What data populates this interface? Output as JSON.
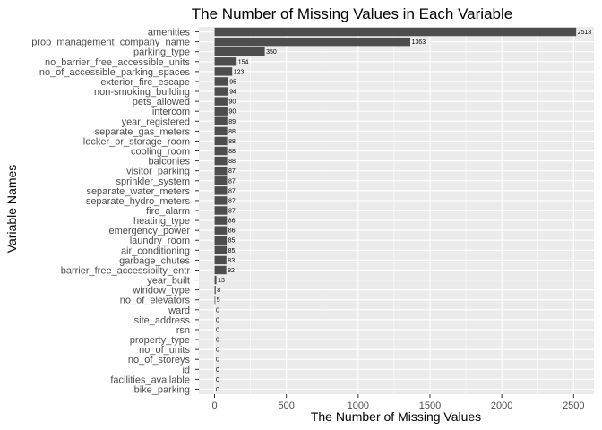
{
  "chart_data": {
    "type": "bar",
    "orientation": "horizontal",
    "title": "The Number of Missing Values in Each Variable",
    "xlabel": "The Number of Missing Values",
    "ylabel": "Variable Names",
    "xlim": [
      0,
      2600
    ],
    "x_ticks": [
      0,
      500,
      1000,
      1500,
      2000,
      2500
    ],
    "grid": true,
    "bar_color": "#4d4d4d",
    "panel_color": "#ebebeb",
    "categories": [
      "amenities",
      "prop_management_company_name",
      "parking_type",
      "no_barrier_free_accessible_units",
      "no_of_accessible_parking_spaces",
      "exterior_fire_escape",
      "non-smoking_building",
      "pets_allowed",
      "intercom",
      "year_registered",
      "separate_gas_meters",
      "locker_or_storage_room",
      "cooling_room",
      "balconies",
      "visitor_parking",
      "sprinkler_system",
      "separate_water_meters",
      "separate_hydro_meters",
      "fire_alarm",
      "heating_type",
      "emergency_power",
      "laundry_room",
      "air_conditioning",
      "garbage_chutes",
      "barrier_free_accessibilty_entr",
      "year_built",
      "window_type",
      "no_of_elevators",
      "ward",
      "site_address",
      "rsn",
      "property_type",
      "no_of_units",
      "no_of_storeys",
      "id",
      "facilities_available",
      "bike_parking"
    ],
    "values": [
      2518,
      1363,
      350,
      154,
      123,
      95,
      94,
      90,
      90,
      89,
      88,
      88,
      88,
      88,
      87,
      87,
      87,
      87,
      87,
      86,
      86,
      85,
      85,
      83,
      82,
      13,
      8,
      5,
      0,
      0,
      0,
      0,
      0,
      0,
      0,
      0,
      0
    ]
  }
}
